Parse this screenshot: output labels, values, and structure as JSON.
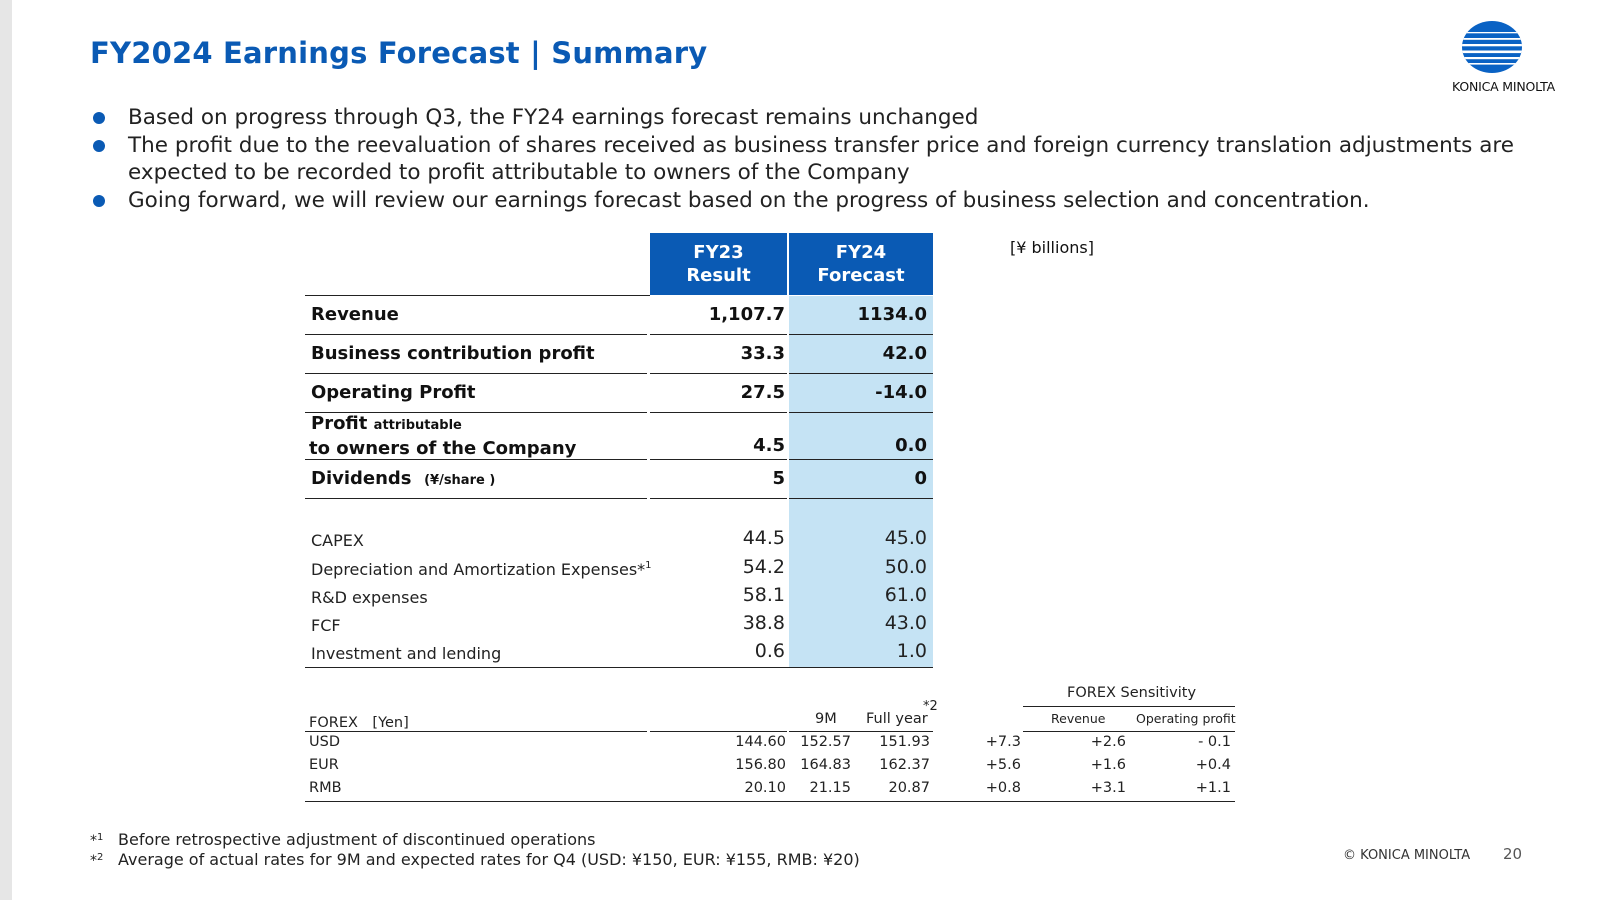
{
  "title": "FY2024 Earnings Forecast | Summary",
  "logo": {
    "text": "KONICA MINOLTA"
  },
  "bullets": [
    "Based on progress through Q3, the FY24 earnings forecast remains unchanged",
    "The profit due to the reevaluation of shares received as business transfer price and foreign currency translation adjustments are expected to be recorded to profit attributable to owners of the Company",
    "Going forward, we will review our earnings forecast based on the progress of business selection and concentration."
  ],
  "units": "[¥ billions]",
  "table": {
    "col_a": {
      "line1": "FY23",
      "line2": "Result"
    },
    "col_b": {
      "line1": "FY24",
      "line2": "Forecast"
    },
    "main_rows": [
      {
        "label": "Revenue",
        "fy23": "1,107.7",
        "fy24": "1134.0"
      },
      {
        "label": "Business contribution profit",
        "fy23": "33.3",
        "fy24": "42.0"
      },
      {
        "label": "Operating Profit",
        "fy23": "27.5",
        "fy24": "-14.0"
      },
      {
        "label": "Profit",
        "label_small": "attributable",
        "label2": "to owners of the Company",
        "fy23": "4.5",
        "fy24": "0.0"
      },
      {
        "label": "Dividends",
        "label_small": "(¥/share )",
        "fy23": "5",
        "fy24": "0"
      }
    ],
    "sub_rows": [
      {
        "label": "CAPEX",
        "fy23": "44.5",
        "fy24": "45.0"
      },
      {
        "label": "Depreciation and Amortization Expenses*",
        "sup": "1",
        "fy23": "54.2",
        "fy24": "50.0"
      },
      {
        "label": "R&D expenses",
        "fy23": "58.1",
        "fy24": "61.0"
      },
      {
        "label": "FCF",
        "fy23": "38.8",
        "fy24": "43.0"
      },
      {
        "label": "Investment and lending",
        "fy23": "0.6",
        "fy24": "1.0"
      }
    ]
  },
  "forex": {
    "header_label": "FOREX　[Yen]",
    "col_9m": "9M",
    "col_full": "Full year",
    "star": "*2",
    "sensitivity_title": "FOREX Sensitivity",
    "col_rev": "Revenue",
    "col_op": "Operating profit",
    "rows": [
      {
        "cur": "USD",
        "fy23": "144.60",
        "m9": "152.57",
        "full": "151.93",
        "diff": "+7.3",
        "rev": "+2.6",
        "op": "- 0.1"
      },
      {
        "cur": "EUR",
        "fy23": "156.80",
        "m9": "164.83",
        "full": "162.37",
        "diff": "+5.6",
        "rev": "+1.6",
        "op": "+0.4"
      },
      {
        "cur": "RMB",
        "fy23": "20.10",
        "m9": "21.15",
        "full": "20.87",
        "diff": "+0.8",
        "rev": "+3.1",
        "op": "+1.1"
      }
    ]
  },
  "footnotes": [
    {
      "mark": "*",
      "sup": "1",
      "text": "Before retrospective adjustment of discontinued operations"
    },
    {
      "mark": "*",
      "sup": "2",
      "text": "Average of actual rates for 9M and expected rates for Q4 (USD: ¥150, EUR: ¥155, RMB: ¥20)"
    }
  ],
  "copyright": "© KONICA MINOLTA",
  "page_number": "20",
  "colors": {
    "brand_blue": "#0a5ab4",
    "forecast_bg": "#c5e3f4"
  }
}
